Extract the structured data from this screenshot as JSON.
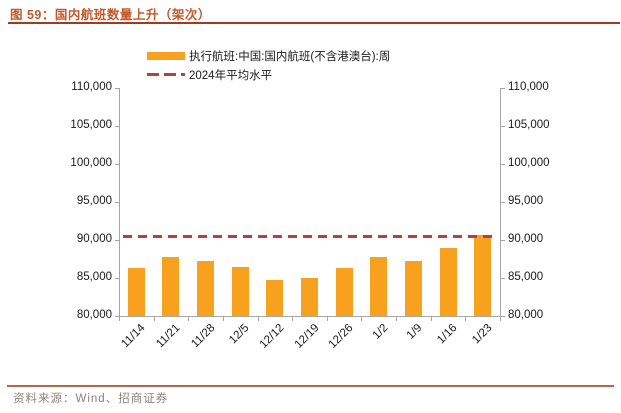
{
  "header": {
    "title": "图 59：国内航班数量上升（架次）"
  },
  "footer": {
    "source": "资料来源：Wind、招商证券"
  },
  "colors": {
    "background": "#FFFFFF",
    "title_text": "#C4582A",
    "title_rule": "#A03B22",
    "bar": "#F8A11E",
    "avg_line": "#B5413D",
    "axis_line": "#A6A6A6",
    "tick_text": "#1A1A1A",
    "footer_rule": "#B4654C",
    "footer_text": "#8F8179"
  },
  "chart_data": {
    "type": "bar",
    "title": "国内航班数量上升（架次）",
    "categories": [
      "11/14",
      "11/21",
      "11/28",
      "12/5",
      "12/12",
      "12/19",
      "12/26",
      "1/2",
      "1/9",
      "1/16",
      "1/23"
    ],
    "series": [
      {
        "name": "执行航班:中国:国内航班(不含港澳台):周",
        "type": "bar",
        "color": "#F8A11E",
        "values": [
          86300,
          87700,
          87300,
          86400,
          84800,
          85000,
          86300,
          87700,
          87300,
          89000,
          90700
        ]
      },
      {
        "name": "2024年平均水平",
        "type": "line",
        "line_style": "dash-dot",
        "color": "#B5413D",
        "value": 90400
      }
    ],
    "xlabel": "",
    "ylabel": "",
    "ylim": [
      80000,
      110000
    ],
    "ytick_step": 5000,
    "y_axis_sides": "both",
    "x_label_rotation": -45,
    "grid": false,
    "legend_position": "top-center"
  }
}
